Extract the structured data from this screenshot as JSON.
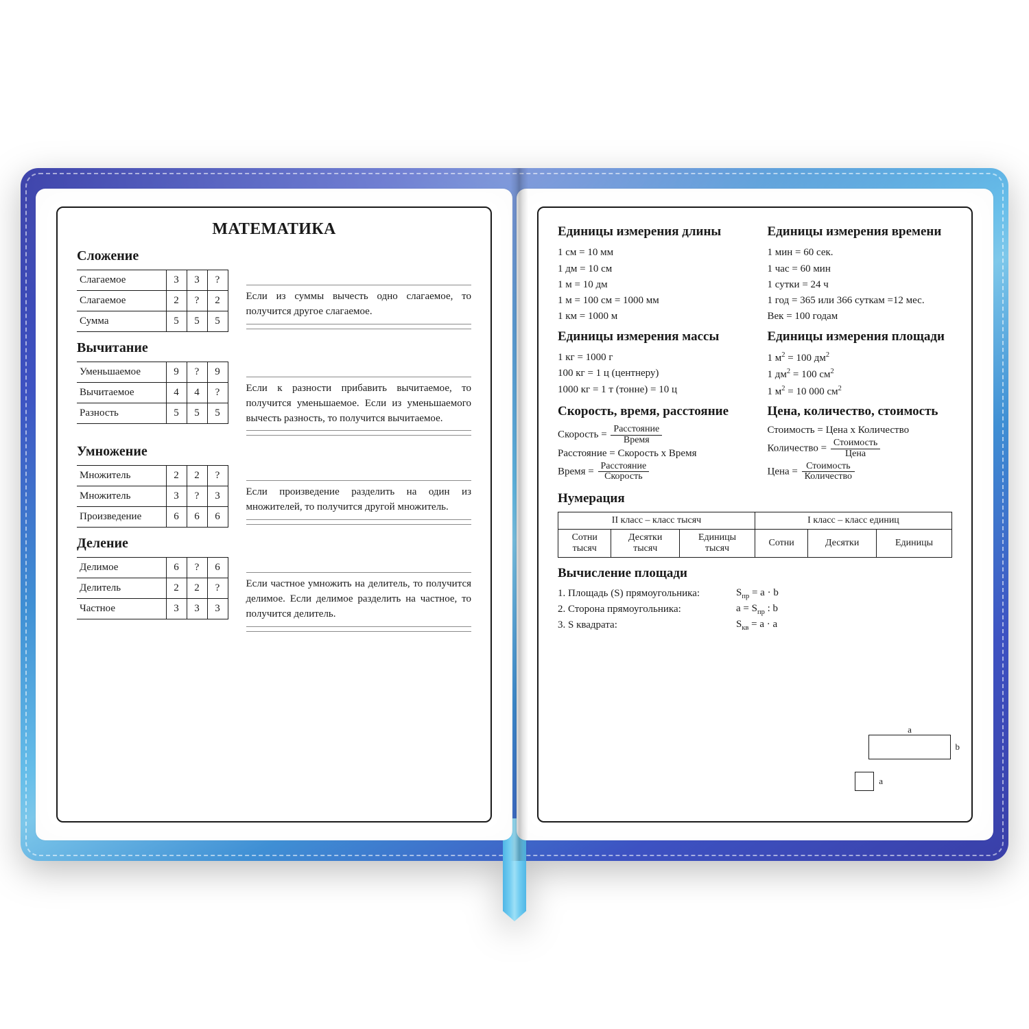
{
  "colors": {
    "text": "#1a1a1a",
    "page_bg": "#ffffff",
    "cover_gradient": [
      "#3a3fa8",
      "#3d52c2",
      "#3f8fd4",
      "#65bde9",
      "#7cc7ea"
    ],
    "stitch": "rgba(255,255,255,0.55)",
    "ribbon": [
      "#4fb6e6",
      "#73cdf1",
      "#9de0f6"
    ]
  },
  "left": {
    "title": "МАТЕМАТИКА",
    "sections": [
      {
        "heading": "Сложение",
        "rows": [
          {
            "label": "Слагаемое",
            "vals": [
              "3",
              "3",
              "?"
            ]
          },
          {
            "label": "Слагаемое",
            "vals": [
              "2",
              "?",
              "2"
            ]
          },
          {
            "label": "Сумма",
            "vals": [
              "5",
              "5",
              "5"
            ]
          }
        ],
        "desc": "Если из суммы вычесть одно слагаемое, то получится другое слагаемое."
      },
      {
        "heading": "Вычитание",
        "rows": [
          {
            "label": "Уменьшаемое",
            "vals": [
              "9",
              "?",
              "9"
            ]
          },
          {
            "label": "Вычитаемое",
            "vals": [
              "4",
              "4",
              "?"
            ]
          },
          {
            "label": "Разность",
            "vals": [
              "5",
              "5",
              "5"
            ]
          }
        ],
        "desc": "Если к разности прибавить вычитаемое, то получится умень­шаемое. Если из уменьшаемого вычесть разность, то получится вычитаемое."
      },
      {
        "heading": "Умножение",
        "rows": [
          {
            "label": "Множитель",
            "vals": [
              "2",
              "2",
              "?"
            ]
          },
          {
            "label": "Множитель",
            "vals": [
              "3",
              "?",
              "3"
            ]
          },
          {
            "label": "Произведение",
            "vals": [
              "6",
              "6",
              "6"
            ]
          }
        ],
        "desc": "Если произведение разделить на один из множителей, то полу­чится другой множитель."
      },
      {
        "heading": "Деление",
        "rows": [
          {
            "label": "Делимое",
            "vals": [
              "6",
              "?",
              "6"
            ]
          },
          {
            "label": "Делитель",
            "vals": [
              "2",
              "2",
              "?"
            ]
          },
          {
            "label": "Частное",
            "vals": [
              "3",
              "3",
              "3"
            ]
          }
        ],
        "desc": "Если частное умножить на дели­тель, то получится делимое. Если делимое разделить на частное, то получится делитель."
      }
    ]
  },
  "right": {
    "length": {
      "h": "Единицы измерения длины",
      "items": [
        "1 см = 10 мм",
        "1 дм = 10 см",
        "1 м = 10 дм",
        "1 м = 100 см = 1000 мм",
        "1 км = 1000 м"
      ]
    },
    "time": {
      "h": "Единицы измерения времени",
      "items": [
        "1 мин = 60 сек.",
        "1 час = 60 мин",
        "1 сутки = 24 ч",
        "1 год = 365 или 366 суткам =12 мес.",
        "Век = 100 годам"
      ]
    },
    "mass": {
      "h": "Единицы измерения массы",
      "items": [
        "1 кг = 1000 г",
        "100 кг = 1 ц (центнеру)",
        "1000 кг = 1 т (тонне) = 10 ц"
      ]
    },
    "area": {
      "h": "Единицы измерения площади",
      "items_html": [
        "1 м<sup>2</sup> = 100 дм<sup>2</sup>",
        "1 дм<sup>2</sup> = 100 см<sup>2</sup>",
        "1 м<sup>2</sup> = 10 000 см<sup>2</sup>"
      ]
    },
    "svr": {
      "h": "Скорость, время, расстояние",
      "f1": {
        "lhs": "Скорость =",
        "top": "Расстояние",
        "bot": "Время"
      },
      "f2": "Расстояние = Скорость х Время",
      "f3": {
        "lhs": "Время =",
        "top": "Расстояние",
        "bot": "Скорость"
      }
    },
    "price": {
      "h": "Цена, количество, стоимость",
      "p1": "Стоимость = Цена х Количество",
      "p2": {
        "lhs": "Количество =",
        "top": "Стоимость",
        "bot": "Цена"
      },
      "p3": {
        "lhs": "Цена =",
        "top": "Стоимость",
        "bot": "Количество"
      }
    },
    "numeration": {
      "h": "Нумерация",
      "top": [
        "II класс – класс тысяч",
        "I класс – класс единиц"
      ],
      "cells": [
        "Сотни тысяч",
        "Десятки тысяч",
        "Единицы тысяч",
        "Сотни",
        "Десятки",
        "Единицы"
      ]
    },
    "areacalc": {
      "h": "Вычисление площади",
      "rows": [
        {
          "t": "1. Площадь (S) прямоугольника:",
          "f": "S<sub>пр</sub> = a · b"
        },
        {
          "t": "2. Сторона прямоугольника:",
          "f": "a = S<sub>пр</sub> : b"
        },
        {
          "t": "3. S квадрата:",
          "f": "S<sub>кв</sub> = a · a"
        }
      ],
      "labels": {
        "a": "a",
        "b": "b"
      }
    }
  }
}
